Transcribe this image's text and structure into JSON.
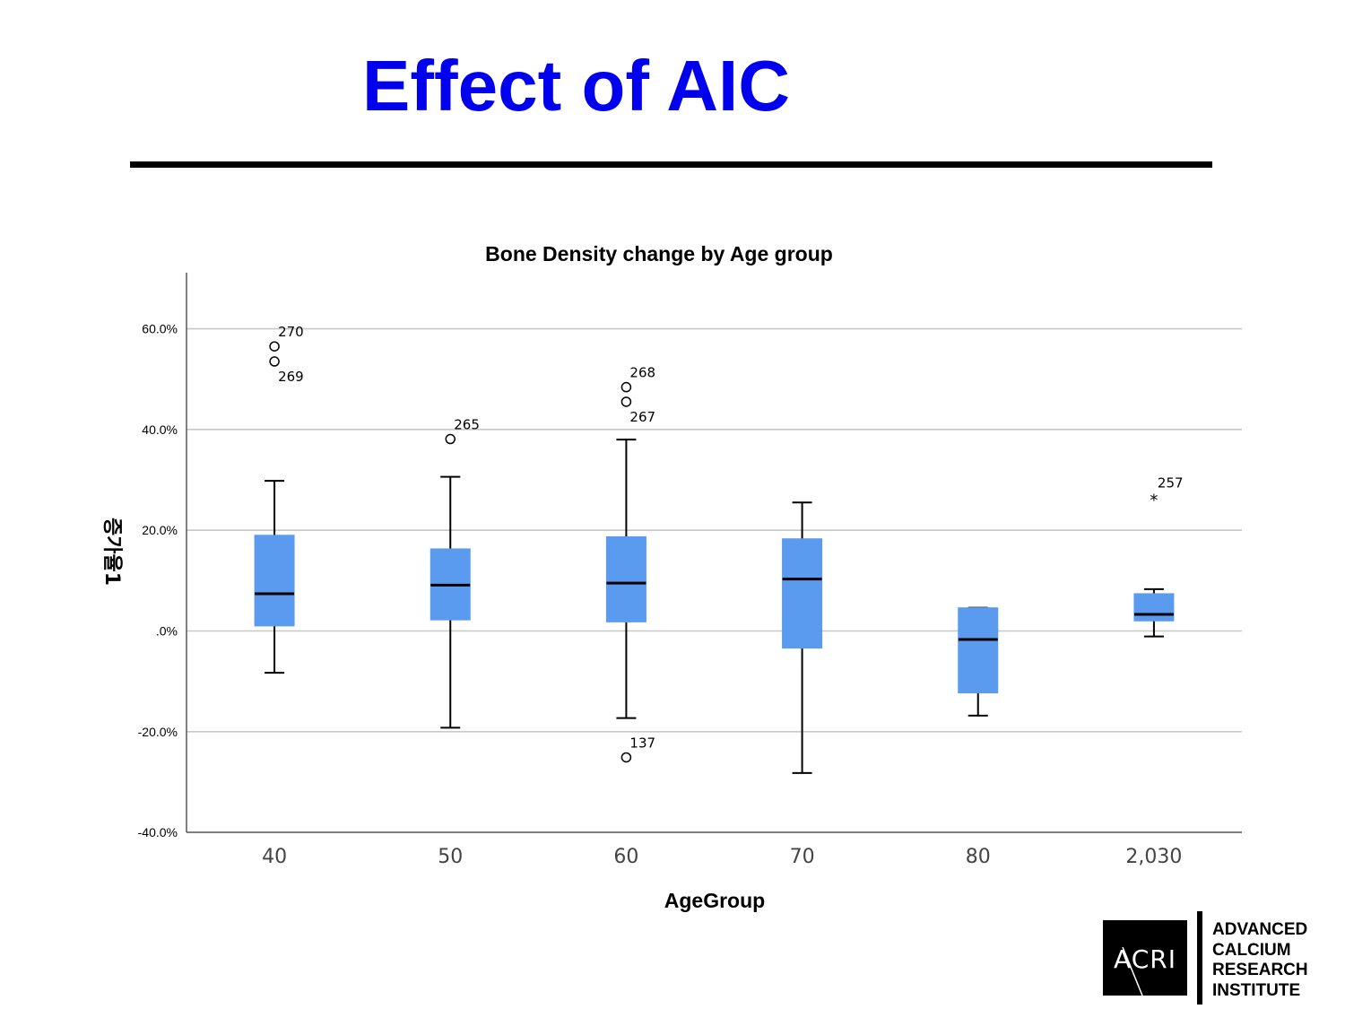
{
  "slide": {
    "title": "Effect of AIC",
    "title_color": "#0000ee"
  },
  "logo": {
    "mark": "ACRI",
    "lines": [
      "ADVANCED",
      "CALCIUM",
      "RESEARCH",
      "INSTITUTE"
    ]
  },
  "chart_data": {
    "type": "box",
    "title": "Bone Density change by Age group",
    "xlabel": "AgeGroup",
    "ylabel": "증가율1",
    "ylim": [
      -40,
      70
    ],
    "y_ticks": [
      {
        "value": 60,
        "label": "60.0%"
      },
      {
        "value": 40,
        "label": "40.0%"
      },
      {
        "value": 20,
        "label": "20.0%"
      },
      {
        "value": 0,
        "label": ".0%"
      },
      {
        "value": -20,
        "label": "-20.0%"
      },
      {
        "value": -40,
        "label": "-40.0%"
      }
    ],
    "grid": true,
    "box_color": "#5b9bef",
    "categories": [
      "40",
      "50",
      "60",
      "70",
      "80",
      "2,030"
    ],
    "boxes": [
      {
        "category": "40",
        "whisker_low": -8.3,
        "q1": 1.0,
        "median": 7.4,
        "q3": 19.0,
        "whisker_high": 29.8
      },
      {
        "category": "50",
        "whisker_low": -19.2,
        "q1": 2.2,
        "median": 9.1,
        "q3": 16.3,
        "whisker_high": 30.6
      },
      {
        "category": "60",
        "whisker_low": -17.3,
        "q1": 1.8,
        "median": 9.5,
        "q3": 18.7,
        "whisker_high": 38.0
      },
      {
        "category": "70",
        "whisker_low": -28.2,
        "q1": -3.4,
        "median": 10.3,
        "q3": 18.3,
        "whisker_high": 25.5
      },
      {
        "category": "80",
        "whisker_low": -16.8,
        "q1": -12.3,
        "median": -1.7,
        "q3": 4.6,
        "whisker_high": 4.6
      },
      {
        "category": "2,030",
        "whisker_low": -1.1,
        "q1": 2.0,
        "median": 3.3,
        "q3": 7.4,
        "whisker_high": 8.3
      }
    ],
    "outliers": [
      {
        "category": "40",
        "value": 56.5,
        "label": "270",
        "marker": "circle"
      },
      {
        "category": "40",
        "value": 53.5,
        "label": "269",
        "marker": "circle"
      },
      {
        "category": "50",
        "value": 38.1,
        "label": "265",
        "marker": "circle"
      },
      {
        "category": "60",
        "value": 48.4,
        "label": "268",
        "marker": "circle"
      },
      {
        "category": "60",
        "value": 45.5,
        "label": "267",
        "marker": "circle"
      },
      {
        "category": "60",
        "value": -25.1,
        "label": "137",
        "marker": "circle"
      },
      {
        "category": "2,030",
        "value": 26.5,
        "label": "257",
        "marker": "star"
      }
    ]
  }
}
